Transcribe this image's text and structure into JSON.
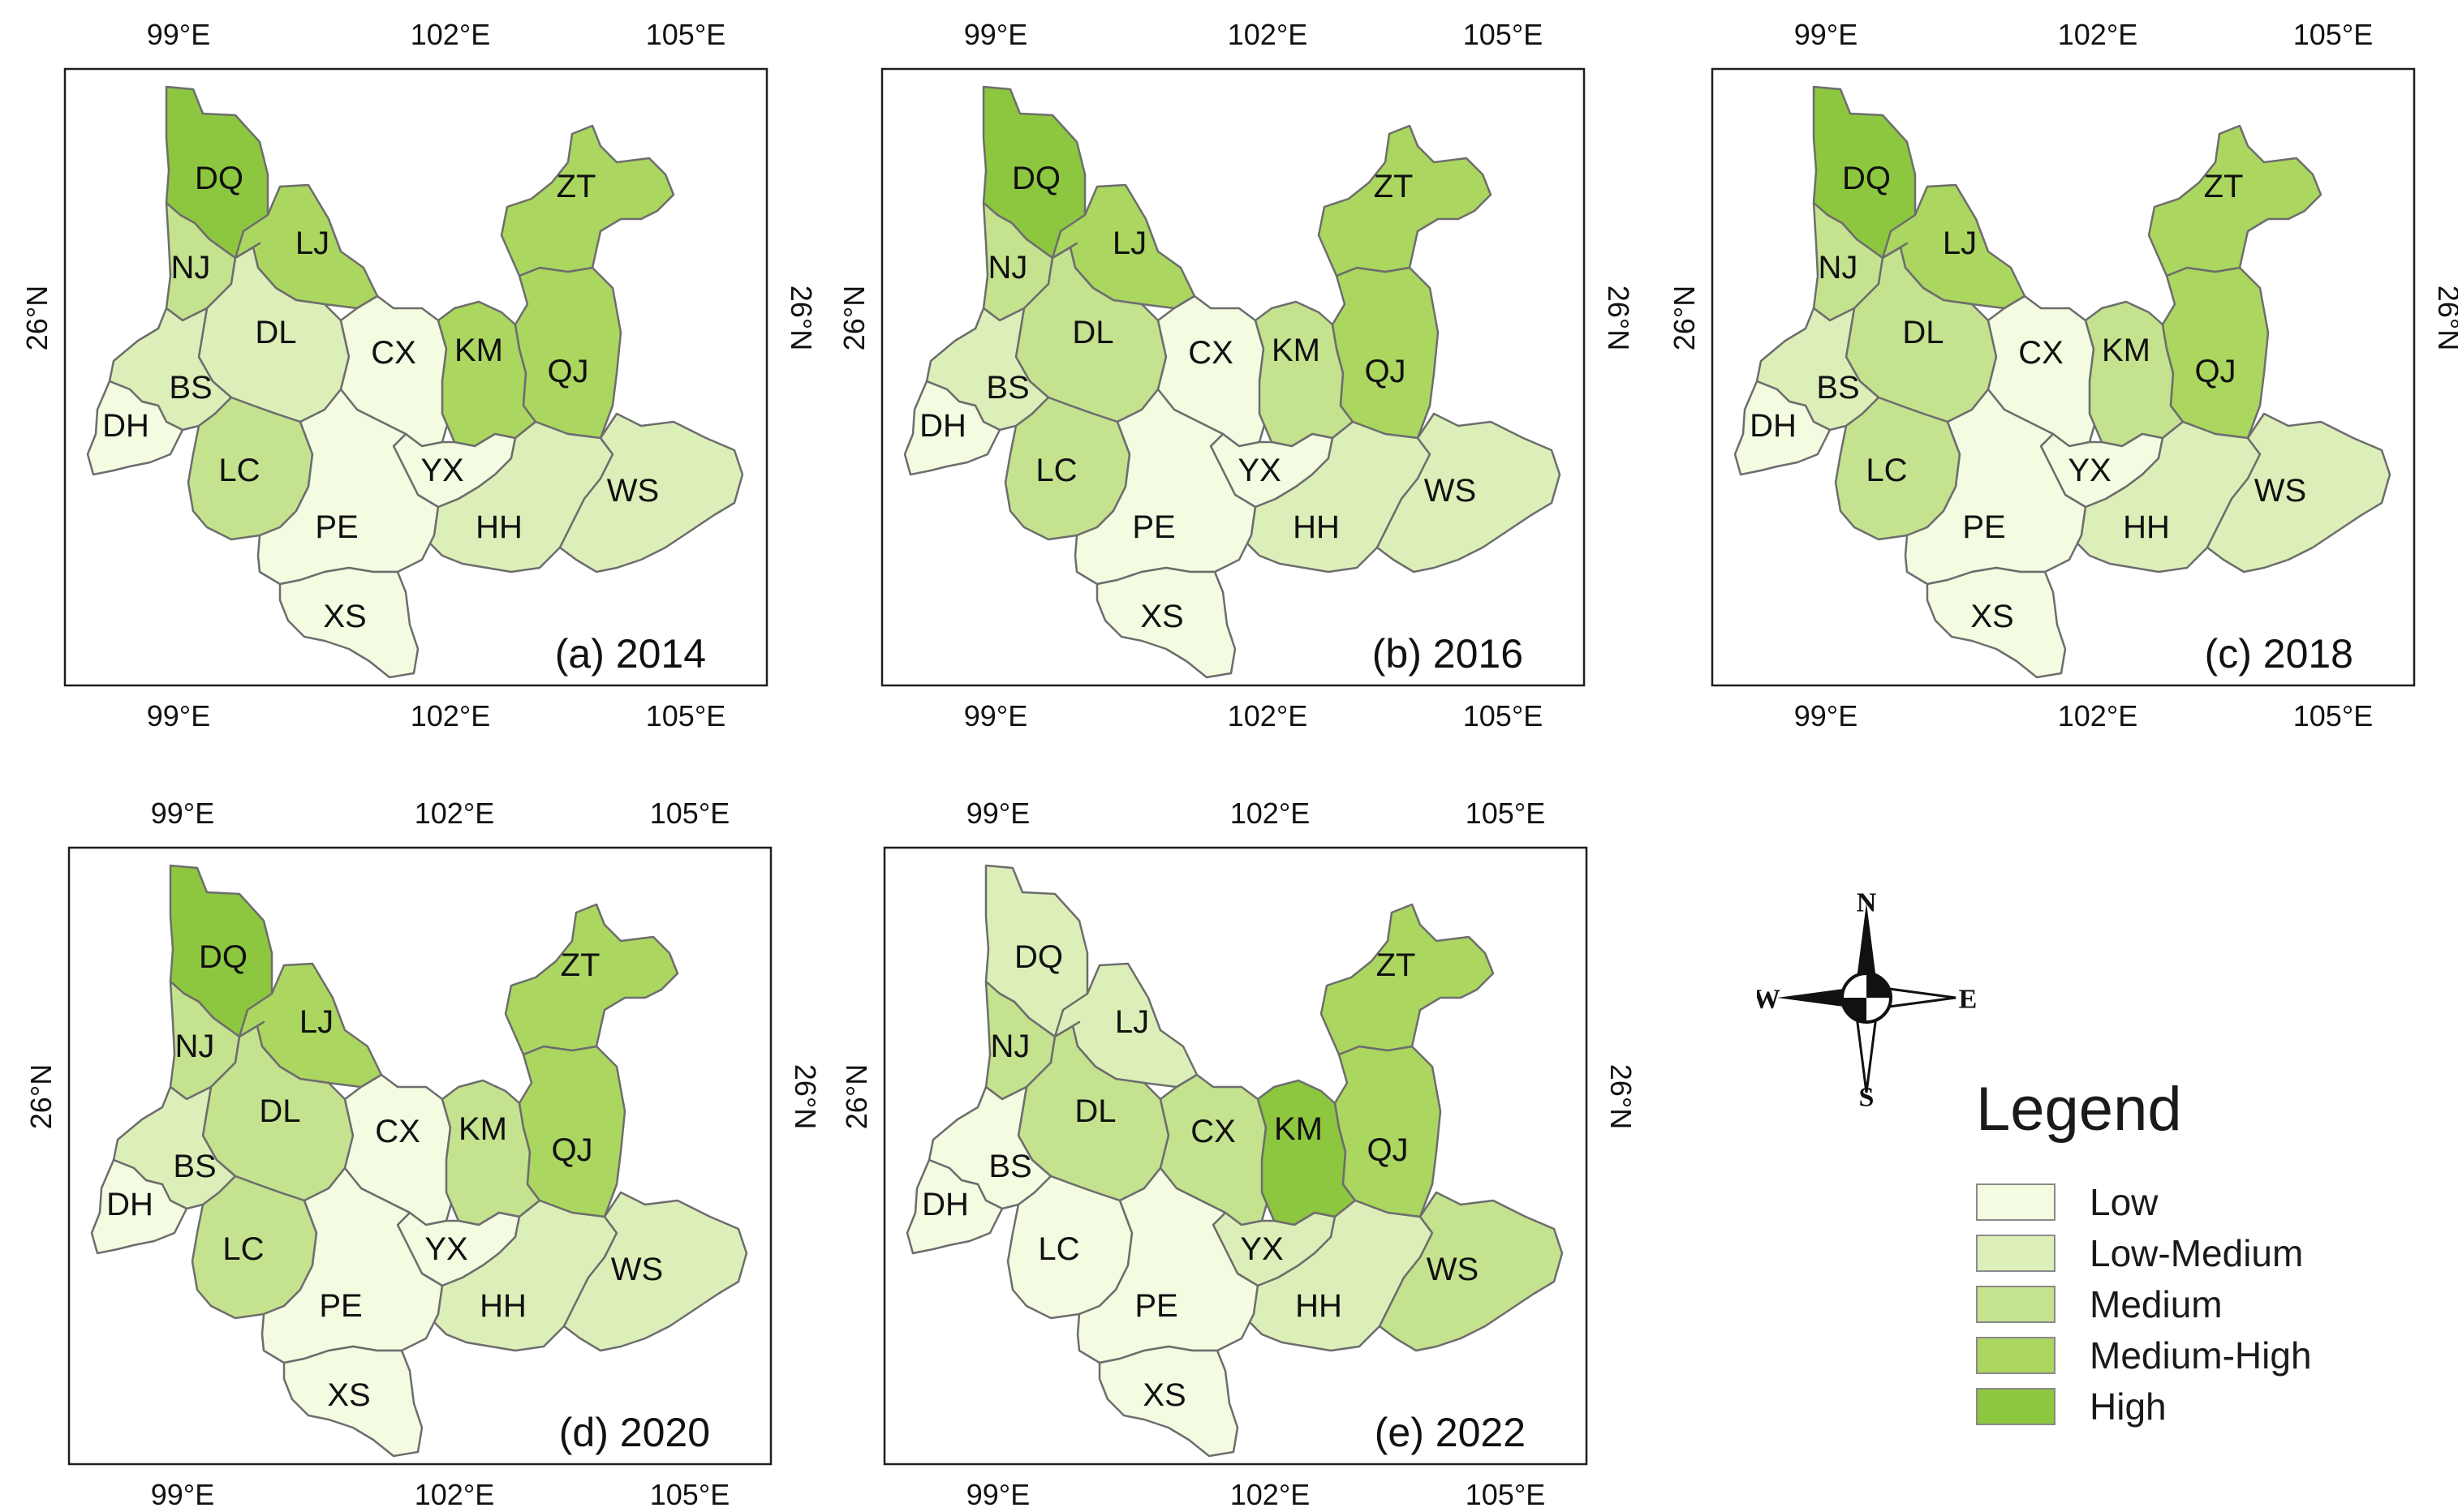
{
  "colors": {
    "Low": "#F3FBE1",
    "Low-Medium": "#DDEFB9",
    "Medium": "#C5E28F",
    "Medium-High": "#ABD660",
    "High": "#8DC63F"
  },
  "axis_labels": {
    "lon": [
      "99°E",
      "102°E",
      "105°E"
    ],
    "lat": "26°N"
  },
  "panels": [
    {
      "title": "(a) 2014",
      "classes": {
        "DQ": "High",
        "LJ": "Medium-High",
        "NJ": "Medium",
        "DL": "Low-Medium",
        "CX": "Low",
        "KM": "Medium-High",
        "QJ": "Medium-High",
        "ZT": "Medium-High",
        "BS": "Low-Medium",
        "DH": "Low",
        "LC": "Medium",
        "YX": "Low",
        "PE": "Low",
        "XS": "Low",
        "HH": "Low-Medium",
        "WS": "Low-Medium"
      }
    },
    {
      "title": "(b) 2016",
      "classes": {
        "DQ": "High",
        "LJ": "Medium-High",
        "NJ": "Medium",
        "DL": "Medium",
        "CX": "Low",
        "KM": "Medium",
        "QJ": "Medium-High",
        "ZT": "Medium-High",
        "BS": "Low-Medium",
        "DH": "Low",
        "LC": "Medium",
        "YX": "Low",
        "PE": "Low",
        "XS": "Low",
        "HH": "Low-Medium",
        "WS": "Low-Medium"
      }
    },
    {
      "title": "(c) 2018",
      "classes": {
        "DQ": "High",
        "LJ": "Medium-High",
        "NJ": "Medium",
        "DL": "Medium",
        "CX": "Low",
        "KM": "Medium",
        "QJ": "Medium-High",
        "ZT": "Medium-High",
        "BS": "Low-Medium",
        "DH": "Low",
        "LC": "Medium",
        "YX": "Low",
        "PE": "Low",
        "XS": "Low",
        "HH": "Low-Medium",
        "WS": "Low-Medium"
      }
    },
    {
      "title": "(d) 2020",
      "classes": {
        "DQ": "High",
        "LJ": "Medium-High",
        "NJ": "Medium",
        "DL": "Medium",
        "CX": "Low",
        "KM": "Medium",
        "QJ": "Medium-High",
        "ZT": "Medium-High",
        "BS": "Low-Medium",
        "DH": "Low",
        "LC": "Medium",
        "YX": "Low",
        "PE": "Low",
        "XS": "Low",
        "HH": "Low-Medium",
        "WS": "Low-Medium"
      }
    },
    {
      "title": "(e) 2022",
      "classes": {
        "DQ": "Low-Medium",
        "LJ": "Low-Medium",
        "NJ": "Medium",
        "DL": "Medium",
        "CX": "Medium",
        "KM": "High",
        "QJ": "Medium-High",
        "ZT": "Medium-High",
        "BS": "Low",
        "DH": "Low",
        "LC": "Low",
        "YX": "Low-Medium",
        "PE": "Low",
        "XS": "Low",
        "HH": "Low-Medium",
        "WS": "Medium"
      }
    }
  ],
  "legend": {
    "title": "Legend",
    "items": [
      "Low",
      "Low-Medium",
      "Medium",
      "Medium-High",
      "High"
    ]
  },
  "compass": {
    "N": "N",
    "S": "S",
    "E": "E",
    "W": "W"
  }
}
